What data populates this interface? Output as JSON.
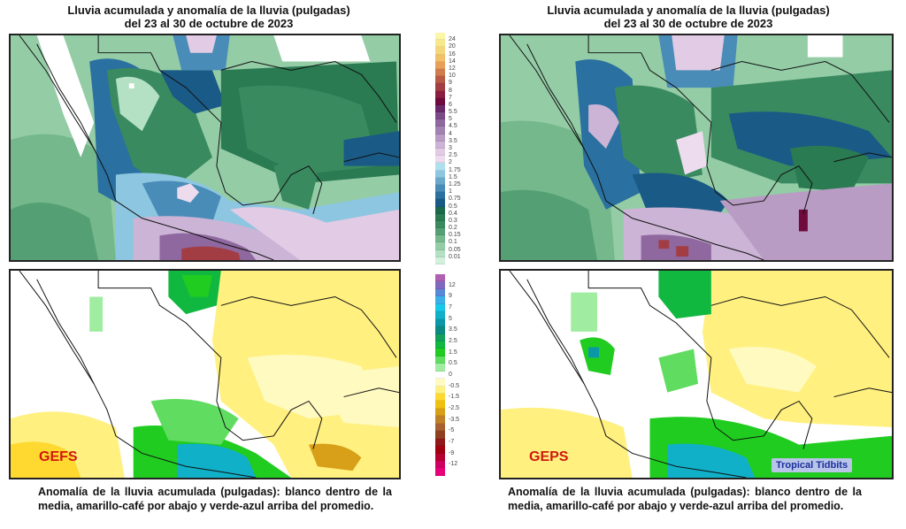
{
  "panels": {
    "left": {
      "title_line1": "Lluvia acumulada y anomalía de la lluvia (pulgadas)",
      "title_line2": "del 23 al 30 de octubre de 2023",
      "model": "GEFS",
      "caption": "Anomalía de la lluvia acumulada (pulgadas): blanco dentro de la media, amarillo-café por abajo y verde-azul arriba del promedio."
    },
    "right": {
      "title_line1": "Lluvia acumulada y anomalía de la lluvia (pulgadas)",
      "title_line2": "del 23 al 30 de octubre de 2023",
      "model": "GEPS",
      "caption": "Anomalía de la lluvia acumulada (pulgadas): blanco dentro de la media, amarillo-café por abajo y verde-azul arriba del promedio.",
      "watermark": "Tropical Tidbits"
    }
  },
  "chart_data": [
    {
      "type": "heatmap",
      "title": "Lluvia acumulada (pulgadas) — GEFS",
      "subtitle": "del 23 al 30 de octubre de 2023",
      "region": "México, Golfo de México y Centroamérica",
      "colorbar": {
        "ticks": [
          "24",
          "20",
          "16",
          "14",
          "12",
          "10",
          "9",
          "8",
          "7",
          "6",
          "5.5",
          "5",
          "4.5",
          "4",
          "3.5",
          "3",
          "2.5",
          "2",
          "1.75",
          "1.5",
          "1.25",
          "1",
          "0.75",
          "0.5",
          "0.4",
          "0.3",
          "0.2",
          "0.15",
          "0.1",
          "0.05",
          "0.01"
        ],
        "colors": [
          "#fbf6a8",
          "#f8e88c",
          "#f6d67a",
          "#f2c068",
          "#e8a058",
          "#d17c4c",
          "#b85a46",
          "#a23d44",
          "#8a1e40",
          "#6e0a3c",
          "#6a2a6a",
          "#7c4a86",
          "#9068a0",
          "#a282b2",
          "#b89cc4",
          "#ccb4d6",
          "#e2cbe4",
          "#ecdcee",
          "#aee0f0",
          "#8cc6e0",
          "#6aa8cc",
          "#4a8cb8",
          "#2a70a0",
          "#1a5a86",
          "#1a6a4a",
          "#2a7a52",
          "#3a8a60",
          "#54a074",
          "#74b88c",
          "#94cca6",
          "#b4e0c4",
          "#d2f0dc"
        ]
      }
    },
    {
      "type": "heatmap",
      "title": "Anomalía de la lluvia acumulada (pulgadas) — GEFS",
      "colorbar": {
        "ticks": [
          "12",
          "9",
          "7",
          "5",
          "3.5",
          "2.5",
          "1.5",
          "0.5",
          "0",
          "-0.5",
          "-1.5",
          "-2.5",
          "-3.5",
          "-5",
          "-7",
          "-9",
          "-12"
        ],
        "colors": [
          "#b060b0",
          "#8068c0",
          "#5a88d8",
          "#3ab0e8",
          "#18c8e8",
          "#10b0c8",
          "#0a98a8",
          "#0a8a80",
          "#12a05a",
          "#10b840",
          "#20cc20",
          "#60dc60",
          "#a0eca0",
          "#ffffff",
          "#fffac0",
          "#fff080",
          "#ffd830",
          "#f0c010",
          "#d8a018",
          "#c08028",
          "#a86030",
          "#904020",
          "#901818",
          "#a00010",
          "#b80030",
          "#d00060",
          "#e8007a"
        ]
      }
    },
    {
      "type": "heatmap",
      "title": "Lluvia acumulada (pulgadas) — GEPS",
      "subtitle": "del 23 al 30 de octubre de 2023"
    },
    {
      "type": "heatmap",
      "title": "Anomalía de la lluvia acumulada (pulgadas) — GEPS"
    }
  ]
}
